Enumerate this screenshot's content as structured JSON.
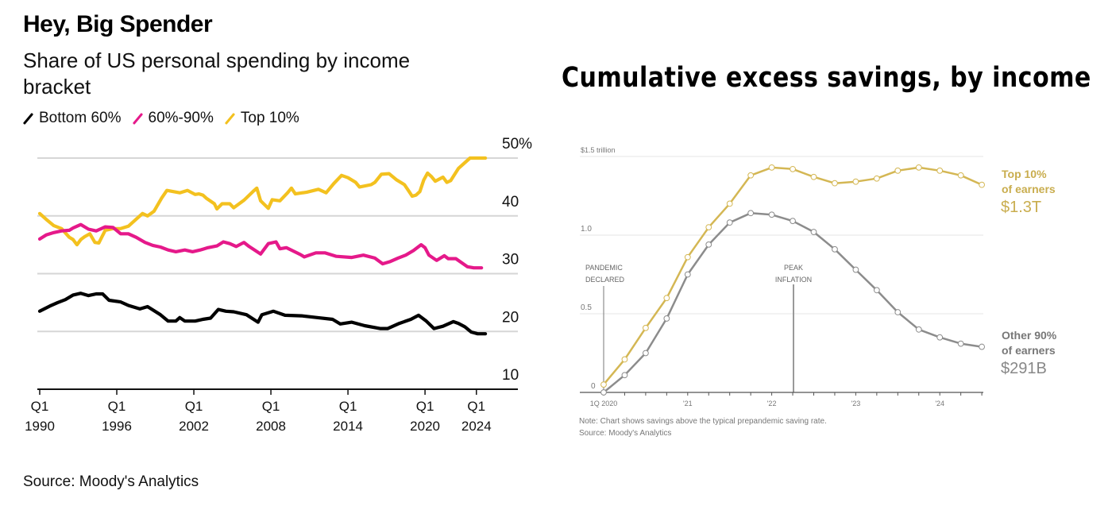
{
  "left_chart": {
    "title": "Hey, Big Spender",
    "subtitle": "Share of US personal spending by income bracket",
    "source": "Source: Moody's Analytics",
    "legend": [
      {
        "label": "Bottom 60%",
        "color": "#000000"
      },
      {
        "label": "60%-90%",
        "color": "#e5198a"
      },
      {
        "label": "Top 10%",
        "color": "#f3c11f"
      }
    ]
  },
  "right_chart": {
    "title": "Cumulative excess savings, by income",
    "note": "Note: Chart shows savings above the typical prepandemic saving rate.",
    "source": "Source: Moody's Analytics",
    "top_label_line1": "Top 10%",
    "top_label_line2": "of earners",
    "top_value": "$1.3T",
    "other_label_line1": "Other 90%",
    "other_label_line2": "of earners",
    "other_value": "$291B",
    "annotation_pandemic_1": "PANDEMIC",
    "annotation_pandemic_2": "DECLARED",
    "annotation_peak_1": "PEAK",
    "annotation_peak_2": "INFLATION"
  },
  "chart_data": [
    {
      "type": "line",
      "title": "Hey, Big Spender",
      "subtitle": "Share of US personal spending by income bracket",
      "xlabel": "",
      "ylabel": "",
      "x_unit": "year",
      "xlim": [
        1990,
        2024.6
      ],
      "ylim": [
        10,
        50
      ],
      "y_ticks": [
        10,
        20,
        30,
        40,
        50
      ],
      "y_tick_labels": [
        "10",
        "20",
        "30",
        "40",
        "50%"
      ],
      "x_ticks": [
        1990,
        1996,
        2002,
        2008,
        2014,
        2020,
        2024
      ],
      "x_tick_labels": [
        [
          "Q1",
          "1990"
        ],
        [
          "Q1",
          "1996"
        ],
        [
          "Q1",
          "2002"
        ],
        [
          "Q1",
          "2008"
        ],
        [
          "Q1",
          "2014"
        ],
        [
          "Q1",
          "2020"
        ],
        [
          "Q1",
          "2024"
        ]
      ],
      "grid": true,
      "legend_position": "top-left",
      "series": [
        {
          "name": "Bottom 60%",
          "color": "#000000",
          "x": [
            1990.0,
            1990.8,
            1991.4,
            1992.0,
            1992.6,
            1993.2,
            1993.8,
            1994.4,
            1994.9,
            1995.4,
            1996.3,
            1996.9,
            1997.8,
            1998.4,
            1999.4,
            2000.0,
            2000.6,
            2000.9,
            2001.3,
            2002.1,
            2002.7,
            2003.3,
            2003.9,
            2004.5,
            2005.1,
            2006.1,
            2007.0,
            2007.3,
            2008.2,
            2009.1,
            2010.4,
            2011.6,
            2012.8,
            2013.4,
            2014.3,
            2015.3,
            2016.5,
            2017.1,
            2018.0,
            2018.9,
            2019.5,
            2020.1,
            2020.7,
            2021.4,
            2022.2,
            2022.6,
            2023.1,
            2023.6,
            2024.1,
            2024.7
          ],
          "y": [
            23.5,
            24.4,
            25.0,
            25.5,
            26.3,
            26.6,
            26.2,
            26.5,
            26.5,
            25.4,
            25.1,
            24.5,
            23.9,
            24.3,
            22.9,
            21.8,
            21.8,
            22.4,
            21.8,
            21.8,
            22.1,
            22.3,
            23.8,
            23.5,
            23.4,
            22.9,
            21.6,
            22.9,
            23.5,
            22.8,
            22.7,
            22.4,
            22.1,
            21.3,
            21.6,
            21.0,
            20.5,
            20.5,
            21.4,
            22.1,
            22.8,
            21.8,
            20.5,
            20.9,
            21.7,
            21.4,
            20.8,
            19.9,
            19.6,
            19.6
          ]
        },
        {
          "name": "60%-90%",
          "color": "#e5198a",
          "x": [
            1990.0,
            1990.5,
            1991.1,
            1991.7,
            1992.3,
            1992.6,
            1992.9,
            1993.2,
            1993.8,
            1994.4,
            1995.1,
            1995.7,
            1996.3,
            1996.9,
            1997.5,
            1998.2,
            1998.8,
            1999.4,
            2000.0,
            2000.6,
            2001.3,
            2001.9,
            2002.5,
            2003.1,
            2003.8,
            2004.3,
            2004.8,
            2005.3,
            2005.9,
            2006.3,
            2007.2,
            2007.8,
            2008.4,
            2008.7,
            2009.2,
            2010.3,
            2010.6,
            2011.5,
            2012.2,
            2013.1,
            2014.3,
            2015.2,
            2016.1,
            2016.7,
            2017.3,
            2017.9,
            2018.5,
            2019.1,
            2019.7,
            2020.0,
            2020.3,
            2020.9,
            2021.5,
            2021.8,
            2022.4,
            2023.3,
            2023.8,
            2024.4
          ],
          "y": [
            36.0,
            36.7,
            37.1,
            37.4,
            37.5,
            37.9,
            38.2,
            38.5,
            37.7,
            37.4,
            38.1,
            38.0,
            36.9,
            36.9,
            36.3,
            35.4,
            34.9,
            34.6,
            34.1,
            33.8,
            34.1,
            33.8,
            34.1,
            34.5,
            34.8,
            35.5,
            35.2,
            34.7,
            35.4,
            34.7,
            33.4,
            35.2,
            35.5,
            34.3,
            34.5,
            33.3,
            32.9,
            33.6,
            33.6,
            33.0,
            32.8,
            33.2,
            32.7,
            31.7,
            32.1,
            32.7,
            33.2,
            34.0,
            35.0,
            34.5,
            33.2,
            32.3,
            33.1,
            32.6,
            32.6,
            31.2,
            31.0,
            31.0
          ]
        },
        {
          "name": "Top 10%",
          "color": "#f3c11f",
          "x": [
            1990.0,
            1990.5,
            1991.1,
            1991.7,
            1992.3,
            1992.6,
            1992.9,
            1993.2,
            1993.5,
            1993.9,
            1994.3,
            1994.6,
            1995.1,
            1995.7,
            1996.3,
            1996.9,
            1997.5,
            1998.0,
            1998.4,
            1998.9,
            1999.5,
            1999.9,
            2000.4,
            2000.9,
            2001.5,
            2002.1,
            2002.4,
            2002.7,
            2003.0,
            2003.6,
            2003.8,
            2004.2,
            2004.8,
            2005.1,
            2005.9,
            2006.6,
            2006.9,
            2007.2,
            2007.8,
            2008.1,
            2008.7,
            2009.3,
            2009.6,
            2009.9,
            2010.8,
            2011.7,
            2012.3,
            2012.9,
            2013.5,
            2014.0,
            2014.6,
            2014.9,
            2015.8,
            2016.1,
            2016.6,
            2017.2,
            2017.8,
            2018.4,
            2018.7,
            2019.0,
            2019.3,
            2019.6,
            2019.9,
            2020.2,
            2020.5,
            2020.8,
            2021.4,
            2021.7,
            2022.0,
            2022.6,
            2023.5,
            2023.8,
            2024.1,
            2024.4,
            2024.7
          ],
          "y": [
            40.4,
            39.4,
            38.3,
            37.8,
            36.3,
            35.9,
            35.0,
            35.9,
            36.4,
            36.9,
            35.4,
            35.3,
            37.5,
            37.8,
            37.8,
            38.2,
            39.4,
            40.4,
            40.0,
            40.8,
            43.1,
            44.4,
            44.2,
            44.0,
            44.4,
            43.7,
            43.8,
            43.6,
            43.0,
            42.1,
            41.2,
            42.1,
            42.1,
            41.4,
            42.7,
            44.2,
            44.8,
            42.6,
            41.3,
            42.8,
            42.6,
            44.0,
            44.8,
            43.8,
            44.1,
            44.6,
            44.0,
            45.6,
            47.0,
            46.6,
            45.8,
            45.0,
            45.4,
            45.8,
            47.2,
            47.3,
            46.2,
            45.4,
            44.4,
            43.4,
            43.6,
            44.2,
            46.2,
            47.4,
            46.8,
            46.0,
            46.7,
            45.8,
            46.1,
            48.2,
            50.0,
            50.0,
            50.0,
            50.0,
            50.0
          ]
        }
      ]
    },
    {
      "type": "line",
      "title": "Cumulative excess savings, by income",
      "xlabel": "",
      "ylabel": "",
      "y_unit": "trillion USD",
      "ylim": [
        0,
        1.5
      ],
      "y_ticks": [
        0,
        0.5,
        1.0,
        1.5
      ],
      "y_tick_labels": [
        "0",
        "0.5",
        "1.0",
        "$1.5 trillion"
      ],
      "x_tick_labels": [
        "1Q 2020",
        "'21",
        "'22",
        "'23",
        "'24"
      ],
      "x": [
        "1Q 2020",
        "2Q 2020",
        "3Q 2020",
        "4Q 2020",
        "1Q 2021",
        "2Q 2021",
        "3Q 2021",
        "4Q 2021",
        "1Q 2022",
        "2Q 2022",
        "3Q 2022",
        "4Q 2022",
        "1Q 2023",
        "2Q 2023",
        "3Q 2023",
        "4Q 2023",
        "1Q 2024",
        "2Q 2024",
        "3Q 2024"
      ],
      "grid": true,
      "markers": "open-circle",
      "annotations": [
        {
          "text": "PANDEMIC DECLARED",
          "x": "1Q 2020"
        },
        {
          "text": "PEAK INFLATION",
          "x": "2Q 2022"
        }
      ],
      "series": [
        {
          "name": "Top 10% of earners",
          "color": "#d4b754",
          "end_label": "$1.3T",
          "values": [
            0.05,
            0.21,
            0.41,
            0.6,
            0.86,
            1.05,
            1.2,
            1.38,
            1.43,
            1.42,
            1.37,
            1.33,
            1.34,
            1.36,
            1.41,
            1.43,
            1.41,
            1.38,
            1.32
          ]
        },
        {
          "name": "Other 90% of earners",
          "color": "#8c8c8c",
          "end_label": "$291B",
          "values": [
            0.0,
            0.11,
            0.25,
            0.47,
            0.75,
            0.94,
            1.08,
            1.14,
            1.13,
            1.09,
            1.02,
            0.91,
            0.78,
            0.65,
            0.51,
            0.4,
            0.35,
            0.31,
            0.29
          ]
        }
      ]
    }
  ]
}
